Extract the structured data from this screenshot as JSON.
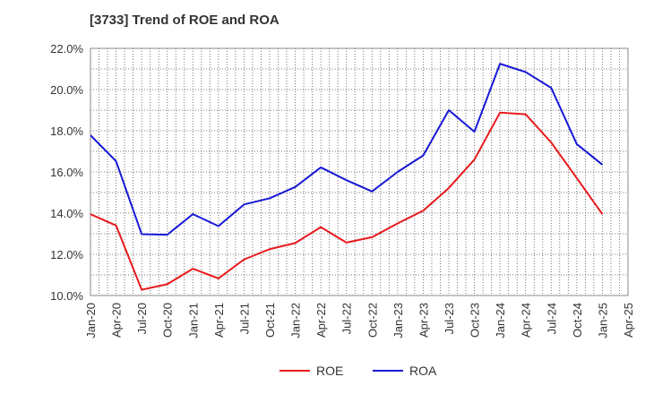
{
  "chart_data": {
    "type": "line",
    "title": "[3733]  Trend of ROE and ROA",
    "xlabel": "",
    "ylabel": "",
    "x": [
      "Jan-20",
      "Apr-20",
      "Jul-20",
      "Oct-20",
      "Jan-21",
      "Apr-21",
      "Jul-21",
      "Oct-21",
      "Jan-22",
      "Apr-22",
      "Jul-22",
      "Oct-22",
      "Jan-23",
      "Apr-23",
      "Jul-23",
      "Oct-23",
      "Jan-24",
      "Apr-24",
      "Jul-24",
      "Oct-24",
      "Jan-25",
      "Apr-25"
    ],
    "ylim": [
      10.0,
      22.0
    ],
    "yticks": [
      "10.0%",
      "12.0%",
      "14.0%",
      "16.0%",
      "18.0%",
      "20.0%",
      "22.0%"
    ],
    "grid": true,
    "legend": "bottom-center",
    "series": [
      {
        "name": "ROE",
        "color": "#e8191c",
        "values": [
          13.95,
          13.4,
          10.28,
          10.55,
          11.3,
          10.83,
          11.75,
          12.25,
          12.55,
          13.32,
          12.57,
          12.83,
          13.5,
          14.12,
          15.22,
          16.6,
          18.88,
          18.8,
          17.43,
          15.7,
          13.95,
          null
        ]
      },
      {
        "name": "ROA",
        "color": "#1818d6",
        "values": [
          17.78,
          16.52,
          12.98,
          12.95,
          13.95,
          13.37,
          14.42,
          14.72,
          15.27,
          16.22,
          15.6,
          15.05,
          16.0,
          16.8,
          19.0,
          17.95,
          21.25,
          20.85,
          20.08,
          17.35,
          16.35,
          null
        ]
      }
    ]
  }
}
